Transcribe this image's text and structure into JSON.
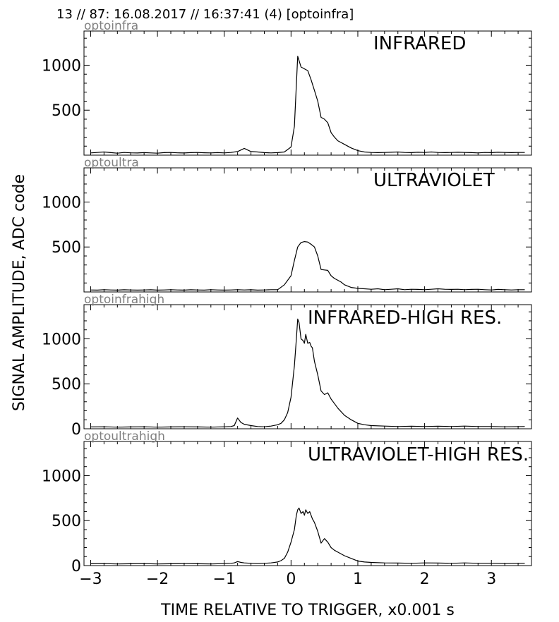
{
  "figure": {
    "header": "13 // 87:   16.08.2017 // 16:37:41 (4)  [optoinfra]",
    "ylabel": "SIGNAL AMPLITUDE,  ADC code",
    "xlabel": "TIME RELATIVE TO TRIGGER,   x0.001 s"
  },
  "chart_data": [
    {
      "type": "line",
      "tag": "optoinfra",
      "title": "INFRARED",
      "xlim": [
        -3.1,
        3.6
      ],
      "ylim": [
        0,
        1380
      ],
      "x_ticks": [
        -3,
        -2,
        -1,
        0,
        1,
        2,
        3
      ],
      "x_ticklabels": [
        "",
        "",
        "",
        "",
        "",
        "",
        ""
      ],
      "y_ticks": [
        500,
        1000
      ],
      "y_ticklabels": [
        "500",
        "1000"
      ],
      "x": [
        -3.0,
        -2.9,
        -2.8,
        -2.7,
        -2.6,
        -2.5,
        -2.4,
        -2.3,
        -2.2,
        -2.1,
        -2.0,
        -1.9,
        -1.8,
        -1.7,
        -1.6,
        -1.5,
        -1.4,
        -1.3,
        -1.2,
        -1.1,
        -1.0,
        -0.9,
        -0.8,
        -0.7,
        -0.6,
        -0.5,
        -0.4,
        -0.3,
        -0.2,
        -0.1,
        0.0,
        0.05,
        0.1,
        0.15,
        0.2,
        0.25,
        0.3,
        0.35,
        0.4,
        0.45,
        0.5,
        0.55,
        0.6,
        0.65,
        0.7,
        0.75,
        0.8,
        0.9,
        1.0,
        1.1,
        1.2,
        1.3,
        1.4,
        1.5,
        1.6,
        1.7,
        1.8,
        1.9,
        2.0,
        2.1,
        2.2,
        2.3,
        2.4,
        2.5,
        2.6,
        2.7,
        2.8,
        2.9,
        3.0,
        3.1,
        3.2,
        3.3,
        3.4,
        3.5
      ],
      "y": [
        25,
        30,
        35,
        28,
        22,
        30,
        26,
        24,
        28,
        25,
        22,
        28,
        30,
        26,
        24,
        28,
        30,
        27,
        25,
        28,
        25,
        30,
        40,
        75,
        40,
        35,
        28,
        25,
        28,
        35,
        90,
        320,
        1100,
        980,
        960,
        940,
        840,
        720,
        600,
        420,
        400,
        360,
        250,
        200,
        160,
        140,
        120,
        80,
        50,
        35,
        30,
        28,
        30,
        32,
        35,
        30,
        28,
        32,
        30,
        35,
        30,
        28,
        30,
        32,
        30,
        28,
        25,
        30,
        28,
        32,
        30,
        28,
        30,
        30
      ]
    },
    {
      "type": "line",
      "tag": "optoultra",
      "title": "ULTRAVIOLET",
      "xlim": [
        -3.1,
        3.6
      ],
      "ylim": [
        0,
        1380
      ],
      "x_ticks": [
        -3,
        -2,
        -1,
        0,
        1,
        2,
        3
      ],
      "x_ticklabels": [
        "",
        "",
        "",
        "",
        "",
        "",
        ""
      ],
      "y_ticks": [
        500,
        1000
      ],
      "y_ticklabels": [
        "500",
        "1000"
      ],
      "x": [
        -3.0,
        -2.9,
        -2.8,
        -2.7,
        -2.6,
        -2.5,
        -2.4,
        -2.3,
        -2.2,
        -2.1,
        -2.0,
        -1.9,
        -1.8,
        -1.7,
        -1.6,
        -1.5,
        -1.4,
        -1.3,
        -1.2,
        -1.1,
        -1.0,
        -0.9,
        -0.8,
        -0.7,
        -0.6,
        -0.5,
        -0.4,
        -0.3,
        -0.2,
        -0.1,
        0.0,
        0.05,
        0.1,
        0.15,
        0.2,
        0.25,
        0.3,
        0.35,
        0.4,
        0.45,
        0.5,
        0.55,
        0.6,
        0.65,
        0.7,
        0.75,
        0.8,
        0.9,
        1.0,
        1.1,
        1.2,
        1.3,
        1.4,
        1.5,
        1.6,
        1.7,
        1.8,
        1.9,
        2.0,
        2.1,
        2.2,
        2.3,
        2.4,
        2.5,
        2.6,
        2.7,
        2.8,
        2.9,
        3.0,
        3.1,
        3.2,
        3.3,
        3.4,
        3.5
      ],
      "y": [
        22,
        20,
        25,
        22,
        20,
        24,
        22,
        20,
        22,
        24,
        20,
        22,
        25,
        22,
        20,
        24,
        22,
        20,
        25,
        22,
        20,
        22,
        25,
        22,
        24,
        20,
        22,
        25,
        25,
        80,
        180,
        350,
        500,
        550,
        560,
        555,
        530,
        500,
        400,
        250,
        245,
        240,
        180,
        150,
        130,
        110,
        80,
        50,
        40,
        35,
        30,
        35,
        25,
        30,
        35,
        25,
        30,
        28,
        25,
        30,
        35,
        30,
        28,
        30,
        25,
        28,
        30,
        25,
        22,
        28,
        25,
        22,
        25,
        25
      ]
    },
    {
      "type": "line",
      "tag": "optoinfrahigh",
      "title": "INFRARED-HIGH RES.",
      "xlim": [
        -3.1,
        3.6
      ],
      "ylim": [
        0,
        1380
      ],
      "x_ticks": [
        -3,
        -2,
        -1,
        0,
        1,
        2,
        3
      ],
      "x_ticklabels": [
        "",
        "",
        "",
        "",
        "",
        "",
        ""
      ],
      "y_ticks": [
        0,
        500,
        1000
      ],
      "y_ticklabels": [
        "0",
        "500",
        "1000"
      ],
      "x": [
        -3.0,
        -2.8,
        -2.6,
        -2.4,
        -2.2,
        -2.0,
        -1.8,
        -1.6,
        -1.4,
        -1.2,
        -1.0,
        -0.9,
        -0.85,
        -0.8,
        -0.75,
        -0.7,
        -0.6,
        -0.5,
        -0.4,
        -0.3,
        -0.2,
        -0.15,
        -0.1,
        -0.05,
        0.0,
        0.05,
        0.08,
        0.1,
        0.12,
        0.15,
        0.18,
        0.2,
        0.22,
        0.25,
        0.28,
        0.3,
        0.32,
        0.35,
        0.4,
        0.45,
        0.5,
        0.55,
        0.6,
        0.65,
        0.7,
        0.8,
        0.9,
        1.0,
        1.1,
        1.2,
        1.4,
        1.6,
        1.8,
        2.0,
        2.2,
        2.4,
        2.6,
        2.8,
        3.0,
        3.2,
        3.5
      ],
      "y": [
        20,
        22,
        18,
        20,
        22,
        18,
        20,
        22,
        20,
        18,
        22,
        25,
        35,
        120,
        70,
        50,
        35,
        25,
        22,
        30,
        45,
        60,
        100,
        180,
        350,
        700,
        1000,
        1220,
        1180,
        1000,
        980,
        950,
        1050,
        950,
        960,
        920,
        900,
        750,
        600,
        420,
        380,
        400,
        330,
        280,
        230,
        150,
        100,
        60,
        45,
        35,
        30,
        25,
        28,
        25,
        28,
        25,
        30,
        25,
        25,
        22,
        25
      ]
    },
    {
      "type": "line",
      "tag": "optoultrahigh",
      "title": "ULTRAVIOLET-HIGH RES.",
      "xlim": [
        -3.1,
        3.6
      ],
      "ylim": [
        0,
        1380
      ],
      "x_ticks": [
        -3,
        -2,
        -1,
        0,
        1,
        2,
        3
      ],
      "x_ticklabels": [
        "−3",
        "−2",
        "−1",
        "0",
        "1",
        "2",
        "3"
      ],
      "y_ticks": [
        0,
        500,
        1000
      ],
      "y_ticklabels": [
        "0",
        "500",
        "1000"
      ],
      "x": [
        -3.0,
        -2.8,
        -2.6,
        -2.4,
        -2.2,
        -2.0,
        -1.8,
        -1.6,
        -1.4,
        -1.2,
        -1.0,
        -0.9,
        -0.85,
        -0.8,
        -0.75,
        -0.7,
        -0.6,
        -0.5,
        -0.4,
        -0.3,
        -0.2,
        -0.15,
        -0.1,
        -0.05,
        0.0,
        0.05,
        0.08,
        0.1,
        0.12,
        0.15,
        0.18,
        0.2,
        0.22,
        0.25,
        0.28,
        0.3,
        0.32,
        0.35,
        0.4,
        0.45,
        0.5,
        0.55,
        0.6,
        0.65,
        0.7,
        0.8,
        0.9,
        1.0,
        1.1,
        1.2,
        1.4,
        1.6,
        1.8,
        2.0,
        2.2,
        2.4,
        2.6,
        2.8,
        3.0,
        3.2,
        3.5
      ],
      "y": [
        20,
        22,
        18,
        20,
        22,
        18,
        20,
        22,
        20,
        18,
        22,
        25,
        30,
        45,
        35,
        30,
        25,
        22,
        25,
        30,
        40,
        55,
        80,
        150,
        260,
        400,
        560,
        620,
        640,
        580,
        600,
        560,
        620,
        580,
        600,
        560,
        520,
        480,
        380,
        250,
        300,
        260,
        200,
        170,
        150,
        110,
        80,
        50,
        40,
        35,
        30,
        28,
        25,
        30,
        28,
        25,
        30,
        25,
        25,
        22,
        25
      ]
    }
  ]
}
